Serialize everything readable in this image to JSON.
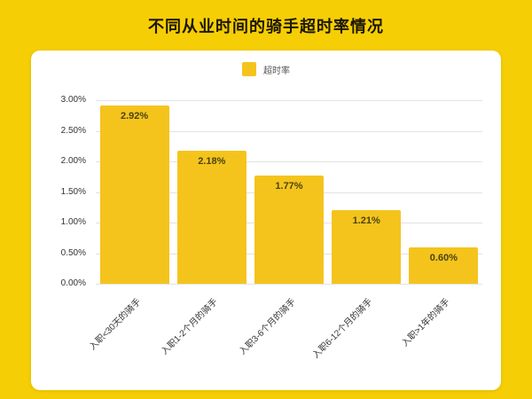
{
  "page": {
    "title": "不同从业时间的骑手超时率情况"
  },
  "legend": {
    "label": "超时率"
  },
  "colors": {
    "background": "#f6ce05",
    "bar": "#f4c41d",
    "card": "#ffffff"
  },
  "chart_data": {
    "type": "bar",
    "title": "不同从业时间的骑手超时率情况",
    "legend_entries": [
      "超时率"
    ],
    "legend_position": "top",
    "categories": [
      "入职<30天的骑手",
      "入职1-2个月的骑手",
      "入职3-6个月的骑手",
      "入职6-12个月的骑手",
      "入职>1年的骑手"
    ],
    "values": [
      2.92,
      2.18,
      1.77,
      1.21,
      0.6
    ],
    "value_labels": [
      "2.92%",
      "2.18%",
      "1.77%",
      "1.21%",
      "0.60%"
    ],
    "xlabel": "",
    "ylabel": "",
    "ylim": [
      0,
      3.0
    ],
    "yticks": [
      "0.00%",
      "0.50%",
      "1.00%",
      "1.50%",
      "2.00%",
      "2.50%",
      "3.00%"
    ],
    "grid": true
  }
}
